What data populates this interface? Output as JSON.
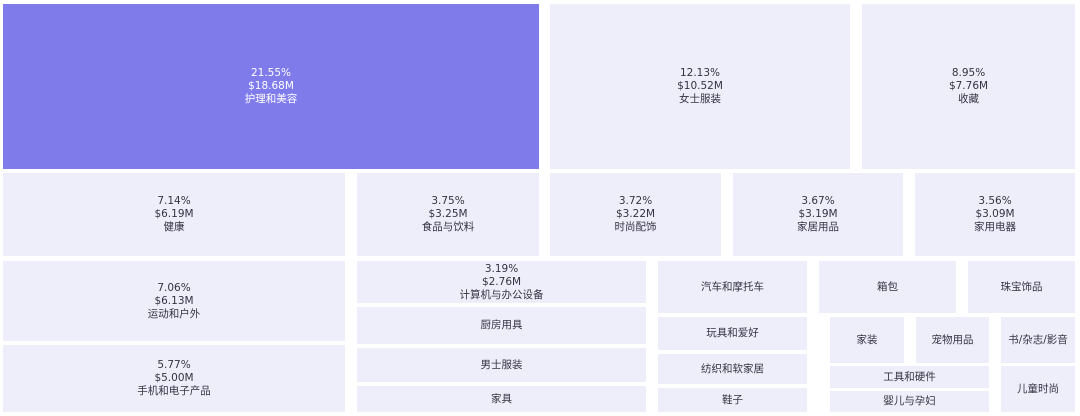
{
  "chart_data": {
    "type": "treemap",
    "highlight_color": "#7f7bea",
    "tile_color": "#eeeefa",
    "items": [
      {
        "name": "护理和美容",
        "share": "21.55%",
        "value": "$18.68M",
        "highlight": true
      },
      {
        "name": "女士服装",
        "share": "12.13%",
        "value": "$10.52M"
      },
      {
        "name": "收藏",
        "share": "8.95%",
        "value": "$7.76M"
      },
      {
        "name": "健康",
        "share": "7.14%",
        "value": "$6.19M"
      },
      {
        "name": "食品与饮料",
        "share": "3.75%",
        "value": "$3.25M"
      },
      {
        "name": "时尚配饰",
        "share": "3.72%",
        "value": "$3.22M"
      },
      {
        "name": "家居用品",
        "share": "3.67%",
        "value": "$3.19M"
      },
      {
        "name": "家用电器",
        "share": "3.56%",
        "value": "$3.09M"
      },
      {
        "name": "运动和户外",
        "share": "7.06%",
        "value": "$6.13M"
      },
      {
        "name": "手机和电子产品",
        "share": "5.77%",
        "value": "$5.00M"
      },
      {
        "name": "计算机与办公设备",
        "share": "3.19%",
        "value": "$2.76M"
      },
      {
        "name": "厨房用具"
      },
      {
        "name": "男士服装"
      },
      {
        "name": "家具"
      },
      {
        "name": "汽车和摩托车"
      },
      {
        "name": "玩具和爱好"
      },
      {
        "name": "纺织和软家居"
      },
      {
        "name": "鞋子"
      },
      {
        "name": "箱包"
      },
      {
        "name": "珠宝饰品"
      },
      {
        "name": "家装"
      },
      {
        "name": "宠物用品"
      },
      {
        "name": "书/杂志/影音"
      },
      {
        "name": "工具和硬件"
      },
      {
        "name": "婴儿与孕妇"
      },
      {
        "name": "儿童时尚"
      }
    ]
  }
}
